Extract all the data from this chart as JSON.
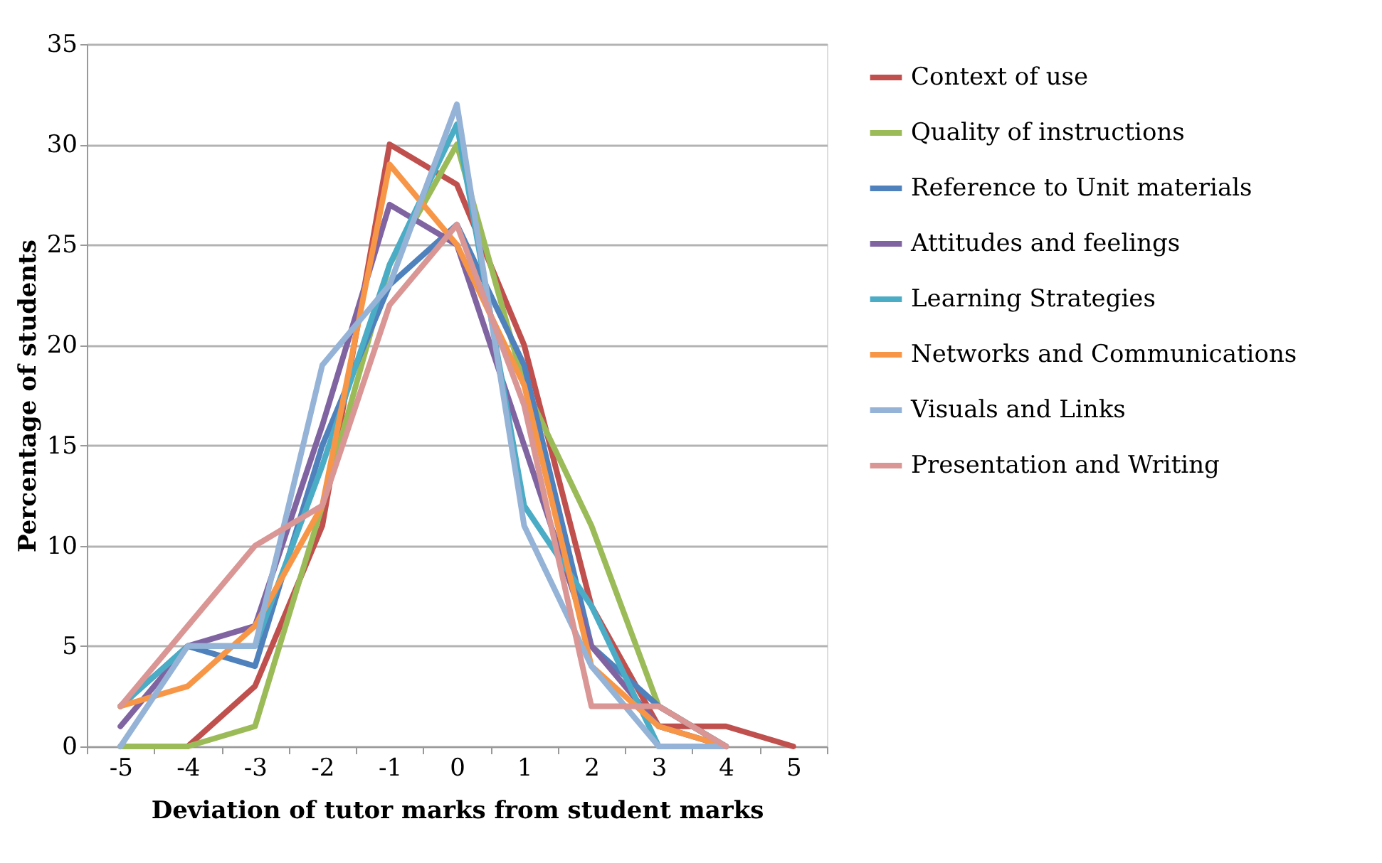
{
  "chart_data": {
    "type": "line",
    "xlabel": "Deviation of tutor marks from student marks",
    "ylabel": "Percentage of students",
    "categories": [
      "-5",
      "-4",
      "-3",
      "-2",
      "-1",
      "0",
      "1",
      "2",
      "3",
      "4",
      "5"
    ],
    "ylim": [
      0,
      35
    ],
    "yticks": [
      0,
      5,
      10,
      15,
      20,
      25,
      30,
      35
    ],
    "grid": "y",
    "legend": "right",
    "marker": "none",
    "line_style": "solid",
    "series": [
      {
        "name": "Context of use",
        "color": "#c0504d",
        "values": [
          0,
          0,
          3,
          11,
          30,
          28,
          20,
          7,
          1,
          1,
          0
        ]
      },
      {
        "name": "Quality of instructions",
        "color": "#9bbb59",
        "values": [
          0,
          0,
          1,
          12,
          24,
          30,
          18,
          11,
          2,
          0,
          null
        ]
      },
      {
        "name": "Reference to Unit materials",
        "color": "#4f81bd",
        "values": [
          2,
          5,
          4,
          15,
          23,
          26,
          19,
          5,
          2,
          0,
          null
        ]
      },
      {
        "name": "Attitudes and feelings",
        "color": "#8064a2",
        "values": [
          1,
          5,
          6,
          16,
          27,
          25,
          15,
          5,
          1,
          0,
          null
        ]
      },
      {
        "name": "Learning Strategies",
        "color": "#4bacc6",
        "values": [
          2,
          5,
          5,
          14,
          24,
          31,
          12,
          7,
          0,
          0,
          null
        ]
      },
      {
        "name": "Networks and Communications",
        "color": "#f79646",
        "values": [
          2,
          3,
          6,
          12,
          29,
          25,
          18,
          4,
          1,
          0,
          null
        ]
      },
      {
        "name": "Visuals and Links",
        "color": "#95b3d7",
        "values": [
          0,
          5,
          5,
          19,
          23,
          32,
          11,
          4,
          0,
          0,
          null
        ]
      },
      {
        "name": "Presentation and Writing",
        "color": "#d99694",
        "values": [
          2,
          6,
          10,
          12,
          22,
          26,
          17,
          2,
          2,
          0,
          null
        ]
      }
    ]
  }
}
